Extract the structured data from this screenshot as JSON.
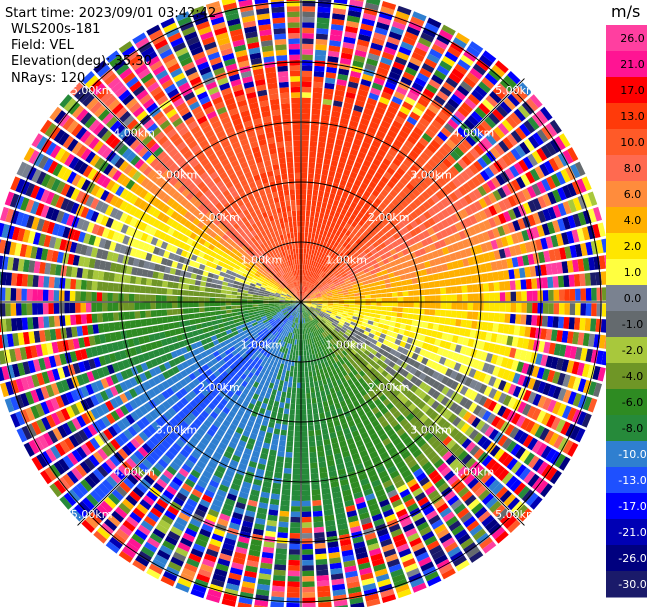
{
  "header": {
    "start_time": "Start time: 2023/09/01 03:42:42",
    "instrument": "WLS200s-181",
    "field": "Field: VEL",
    "elevation": "Elevation(deg): 35.30",
    "nrays": "NRays: 120"
  },
  "chart_data": {
    "type": "heatmap",
    "projection": "polar-ppi",
    "field": "VEL",
    "n_rays": 120,
    "elevation_deg": 35.3,
    "max_range_km": 5.2,
    "range_rings_km": [
      1.0,
      2.0,
      3.0,
      4.0,
      5.0
    ],
    "range_ring_labels": [
      "1.00km",
      "2.00km",
      "3.00km",
      "4.00km",
      "5.00km"
    ],
    "spokes_deg": [
      0,
      45,
      90,
      135,
      180,
      225,
      270,
      315
    ],
    "clean_data_limit_km": 3.3,
    "velocity_by_azimuth_within_3km": [
      {
        "azimuth_deg": 0,
        "velocity": 14
      },
      {
        "azimuth_deg": 15,
        "velocity": 15
      },
      {
        "azimuth_deg": 30,
        "velocity": 14
      },
      {
        "azimuth_deg": 45,
        "velocity": 12
      },
      {
        "azimuth_deg": 60,
        "velocity": 9
      },
      {
        "azimuth_deg": 75,
        "velocity": 6
      },
      {
        "azimuth_deg": 90,
        "velocity": 4
      },
      {
        "azimuth_deg": 105,
        "velocity": 2
      },
      {
        "azimuth_deg": 115,
        "velocity": 1
      },
      {
        "azimuth_deg": 125,
        "velocity": -1
      },
      {
        "azimuth_deg": 135,
        "velocity": -3
      },
      {
        "azimuth_deg": 150,
        "velocity": -5
      },
      {
        "azimuth_deg": 165,
        "velocity": -6
      },
      {
        "azimuth_deg": 180,
        "velocity": -7
      },
      {
        "azimuth_deg": 195,
        "velocity": -8
      },
      {
        "azimuth_deg": 210,
        "velocity": -9
      },
      {
        "azimuth_deg": 225,
        "velocity": -11
      },
      {
        "azimuth_deg": 240,
        "velocity": -9
      },
      {
        "azimuth_deg": 255,
        "velocity": -6
      },
      {
        "azimuth_deg": 270,
        "velocity": -4
      },
      {
        "azimuth_deg": 285,
        "velocity": 0
      },
      {
        "azimuth_deg": 300,
        "velocity": 3
      },
      {
        "azimuth_deg": 315,
        "velocity": 9
      },
      {
        "azimuth_deg": 330,
        "velocity": 11
      },
      {
        "azimuth_deg": 345,
        "velocity": 13
      }
    ],
    "colorbar": {
      "unit": "m/s",
      "tick_labels": [
        "26.0",
        "21.0",
        "17.0",
        "13.0",
        "10.0",
        "8.0",
        "6.0",
        "4.0",
        "2.0",
        "1.0",
        "0.0",
        "-1.0",
        "-2.0",
        "-4.0",
        "-6.0",
        "-8.0",
        "-10.0",
        "-13.0",
        "-17.0",
        "-21.0",
        "-26.0",
        "-30.0"
      ],
      "bounds": [
        30,
        26,
        21,
        17,
        13,
        10,
        8,
        6,
        4,
        2,
        1,
        0,
        -1,
        -2,
        -4,
        -6,
        -8,
        -10,
        -13,
        -17,
        -21,
        -26,
        -30
      ],
      "colors": [
        "#ff3fa0",
        "#ff1493",
        "#ff0000",
        "#ff3a0a",
        "#ff5a28",
        "#ff6a50",
        "#ff8c3c",
        "#ffb000",
        "#ffe600",
        "#ffff40",
        "#7a8290",
        "#646a6e",
        "#a8c83c",
        "#6f9626",
        "#2e8b22",
        "#268a3a",
        "#2f7fd0",
        "#1e50ff",
        "#0000ff",
        "#0000b4",
        "#00007f",
        "#1a1a6a"
      ]
    }
  }
}
